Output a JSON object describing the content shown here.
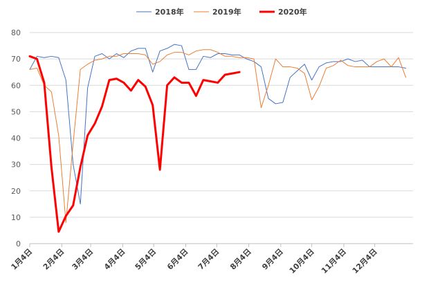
{
  "chart_data": {
    "type": "line",
    "title": "",
    "xlabel": "",
    "ylabel": "",
    "ylim": [
      0,
      80
    ],
    "yticks": [
      0,
      10,
      20,
      30,
      40,
      50,
      60,
      70,
      80
    ],
    "grid": "horizontal",
    "legend_position": "top",
    "x_week_count": 53,
    "x_tick_labels": [
      {
        "week": 0,
        "label": "1月4日"
      },
      {
        "week": 4.43,
        "label": "2月4日"
      },
      {
        "week": 8.43,
        "label": "3月4日"
      },
      {
        "week": 12.86,
        "label": "4月4日"
      },
      {
        "week": 17.14,
        "label": "5月4日"
      },
      {
        "week": 21.57,
        "label": "6月4日"
      },
      {
        "week": 25.86,
        "label": "7月4日"
      },
      {
        "week": 30.29,
        "label": "8月4日"
      },
      {
        "week": 34.71,
        "label": "9月4日"
      },
      {
        "week": 39.0,
        "label": "10月4日"
      },
      {
        "week": 43.43,
        "label": "11月4日"
      },
      {
        "week": 47.71,
        "label": "12月4日"
      }
    ],
    "series": [
      {
        "name": "2018年",
        "color": "#4472C4",
        "line_width": 1,
        "values": [
          66,
          71,
          70.5,
          71,
          70.5,
          62,
          30,
          15,
          59,
          71,
          72,
          70,
          72,
          70.5,
          73,
          74,
          74,
          65,
          73,
          74,
          75.5,
          75,
          66,
          66,
          71,
          70.5,
          72,
          72,
          71.5,
          71.5,
          70,
          69,
          67,
          55,
          53,
          53.5,
          63,
          65.5,
          68,
          62,
          67,
          68.5,
          69,
          69,
          70,
          69,
          69.5,
          67,
          67,
          67,
          67,
          67,
          66.5
        ]
      },
      {
        "name": "2019年",
        "color": "#ED7D31",
        "line_width": 1,
        "values": [
          66,
          66.5,
          60,
          57.5,
          41,
          8,
          38,
          66,
          68,
          69.5,
          70,
          71,
          71,
          72,
          72,
          72,
          71.5,
          68,
          69,
          71.5,
          72.5,
          72.5,
          71.5,
          73,
          73.5,
          73.5,
          72.5,
          71,
          71,
          70.5,
          70.5,
          70,
          51.5,
          60,
          70,
          67,
          67,
          66.5,
          64.5,
          54.5,
          59.5,
          66.5,
          67.5,
          69.5,
          67.5,
          67,
          67,
          67,
          69,
          70,
          67,
          70.5,
          63
        ]
      },
      {
        "name": "2020年",
        "color": "#FF0000",
        "line_width": 3,
        "values": [
          71,
          70,
          61,
          29,
          4.5,
          10.5,
          14.5,
          29,
          41,
          45.5,
          52,
          62,
          62.5,
          61,
          58,
          62,
          59.5,
          52.5,
          28,
          60,
          63,
          61,
          61,
          56,
          62,
          61.5,
          61,
          64,
          64.5,
          65
        ]
      }
    ]
  }
}
